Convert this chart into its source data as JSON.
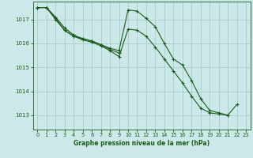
{
  "title": "Graphe pression niveau de la mer (hPa)",
  "bg_color": "#cce8e8",
  "grid_color": "#aacccc",
  "line_color": "#1a5c1a",
  "marker_color": "#1a5c1a",
  "xlim": [
    -0.5,
    23.5
  ],
  "ylim": [
    1012.4,
    1017.75
  ],
  "yticks": [
    1013,
    1014,
    1015,
    1016,
    1017
  ],
  "xticks": [
    0,
    1,
    2,
    3,
    4,
    5,
    6,
    7,
    8,
    9,
    10,
    11,
    12,
    13,
    14,
    15,
    16,
    17,
    18,
    19,
    20,
    21,
    22,
    23
  ],
  "series": [
    {
      "x": [
        0,
        1,
        2,
        3,
        4,
        5,
        6,
        7,
        8,
        9,
        10,
        11,
        12,
        13,
        14,
        15,
        16,
        17,
        18,
        19,
        20,
        21,
        22
      ],
      "y": [
        1017.5,
        1017.5,
        1017.1,
        1016.65,
        1016.35,
        1016.2,
        1016.1,
        1015.95,
        1015.8,
        1015.7,
        1017.4,
        1017.35,
        1017.05,
        1016.7,
        1016.0,
        1015.35,
        1015.1,
        1014.45,
        1013.7,
        1013.2,
        1013.1,
        1013.0,
        1013.45
      ]
    },
    {
      "x": [
        0,
        1,
        2,
        3,
        4,
        5,
        6,
        7,
        8,
        9,
        10,
        11,
        12,
        13,
        14,
        15,
        16,
        17,
        18,
        19,
        20,
        21
      ],
      "y": [
        1017.5,
        1017.5,
        1017.05,
        1016.55,
        1016.3,
        1016.15,
        1016.05,
        1015.9,
        1015.7,
        1015.45,
        1016.6,
        1016.55,
        1016.3,
        1015.85,
        1015.35,
        1014.85,
        1014.35,
        1013.8,
        1013.3,
        1013.1,
        1013.05,
        1013.0
      ]
    },
    {
      "x": [
        0,
        1,
        2,
        3,
        4,
        5,
        6,
        7,
        8,
        9
      ],
      "y": [
        1017.5,
        1017.5,
        1017.0,
        1016.55,
        1016.3,
        1016.2,
        1016.1,
        1015.95,
        1015.75,
        1015.6
      ]
    }
  ]
}
